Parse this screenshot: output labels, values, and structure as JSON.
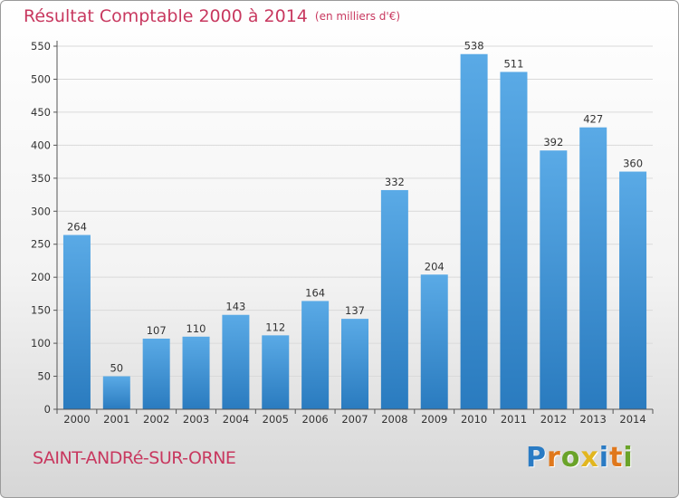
{
  "title": "Résultat Comptable 2000 à 2014",
  "unit_note": "(en milliers d'€)",
  "town": "SAINT-ANDRé-SUR-ORNE",
  "logo": {
    "text": "Proxiti",
    "letters": [
      {
        "ch": "P",
        "color": "#2a7bc4"
      },
      {
        "ch": "r",
        "color": "#e0781c"
      },
      {
        "ch": "o",
        "color": "#6aa329"
      },
      {
        "ch": "x",
        "color": "#e2b61f"
      },
      {
        "ch": "i",
        "color": "#2a7bc4"
      },
      {
        "ch": "t",
        "color": "#e0781c"
      },
      {
        "ch": "i",
        "color": "#6aa329"
      }
    ]
  },
  "colors": {
    "title": "#c8385f",
    "bar_top": "#5aaae6",
    "bar_bottom": "#2a7bbf",
    "grid": "#d9d9d9",
    "axis": "#555555"
  },
  "chart_data": {
    "type": "bar",
    "title": "Résultat Comptable 2000 à 2014",
    "subtitle": "(en milliers d'€)",
    "xlabel": "",
    "ylabel": "",
    "categories": [
      "2000",
      "2001",
      "2002",
      "2003",
      "2004",
      "2005",
      "2006",
      "2007",
      "2008",
      "2009",
      "2010",
      "2011",
      "2012",
      "2013",
      "2014"
    ],
    "values": [
      264,
      50,
      107,
      110,
      143,
      112,
      164,
      137,
      332,
      204,
      538,
      511,
      392,
      427,
      360
    ],
    "ylim": [
      0,
      550
    ],
    "yticks": [
      0,
      50,
      100,
      150,
      200,
      250,
      300,
      350,
      400,
      450,
      500,
      550
    ],
    "grid": true,
    "data_labels": true
  }
}
